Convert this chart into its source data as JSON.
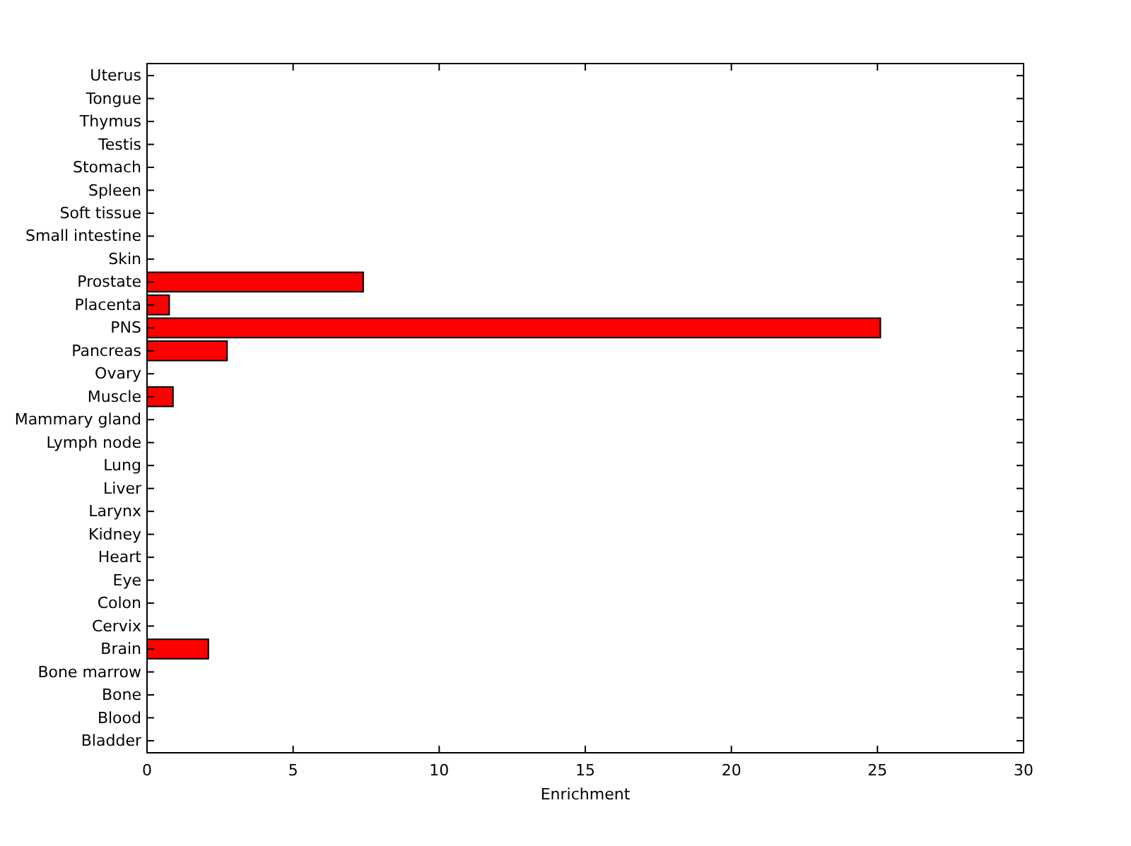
{
  "chart_data": {
    "type": "bar",
    "orientation": "horizontal",
    "xlabel": "Enrichment",
    "categories": [
      "Uterus",
      "Tongue",
      "Thymus",
      "Testis",
      "Stomach",
      "Spleen",
      "Soft tissue",
      "Small intestine",
      "Skin",
      "Prostate",
      "Placenta",
      "PNS",
      "Pancreas",
      "Ovary",
      "Muscle",
      "Mammary gland",
      "Lymph node",
      "Lung",
      "Liver",
      "Larynx",
      "Kidney",
      "Heart",
      "Eye",
      "Colon",
      "Cervix",
      "Brain",
      "Bone marrow",
      "Bone",
      "Blood",
      "Bladder"
    ],
    "values": [
      0,
      0,
      0,
      0,
      0,
      0,
      0,
      0,
      0,
      7.4,
      0.76,
      25.1,
      2.74,
      0,
      0.89,
      0,
      0,
      0,
      0,
      0,
      0,
      0,
      0,
      0,
      0,
      2.1,
      0,
      0,
      0,
      0
    ],
    "color": "#ff0000",
    "xlim": [
      0,
      30
    ],
    "xticks": [
      0,
      5,
      10,
      15,
      20,
      25,
      30
    ],
    "grid": false
  }
}
